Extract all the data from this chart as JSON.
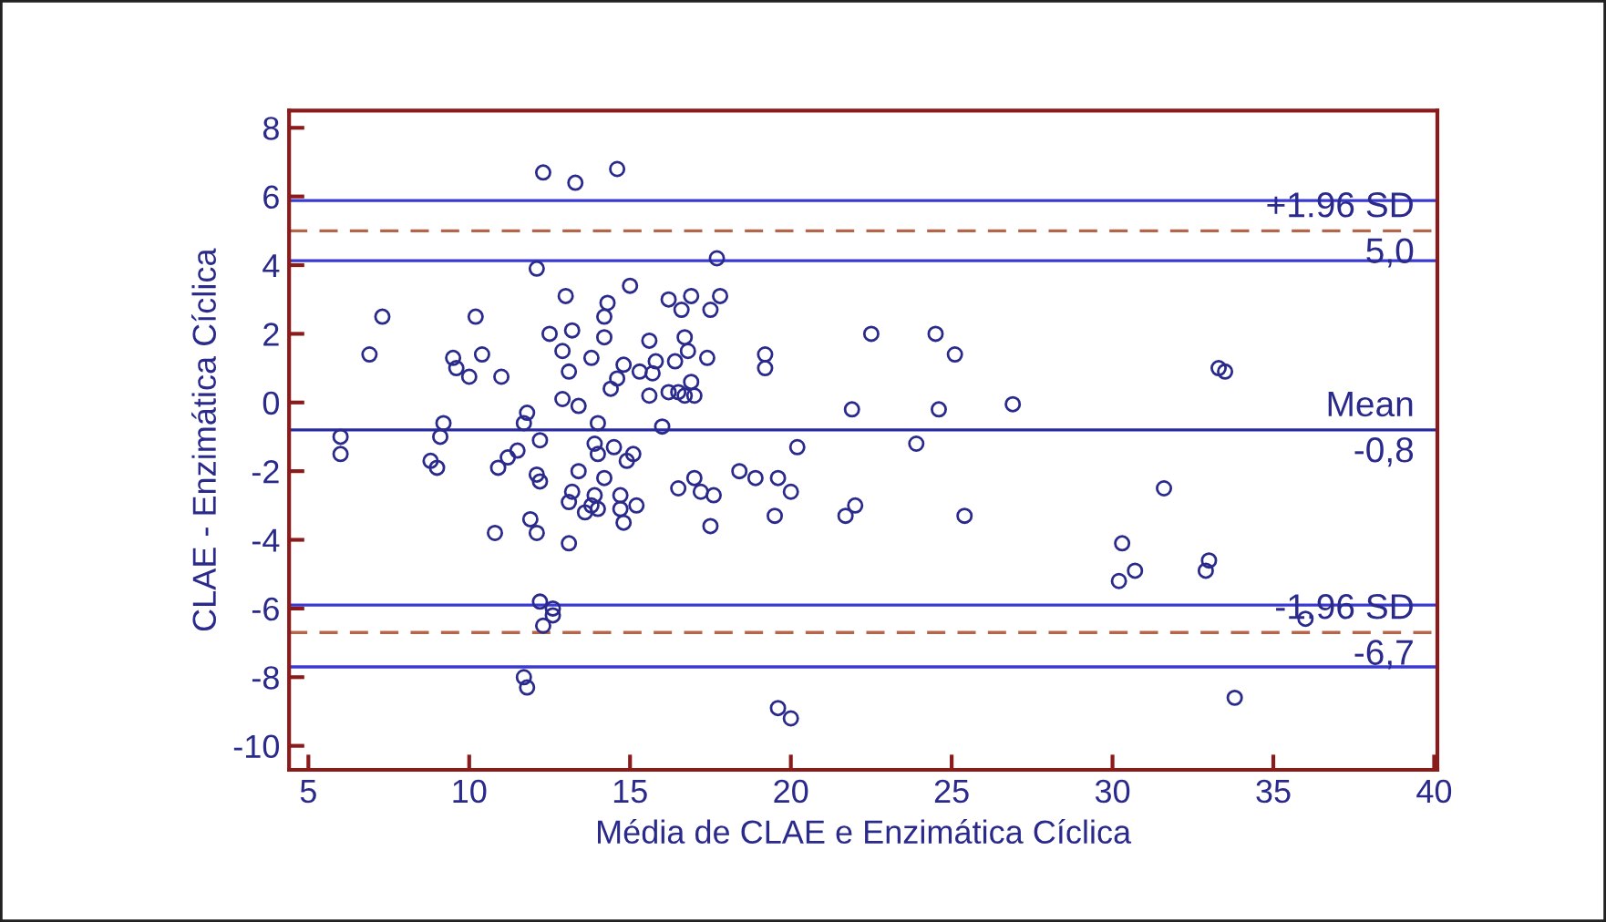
{
  "chart_data": {
    "type": "scatter",
    "xlabel": "Média de CLAE e Enzimática Cíclica",
    "ylabel": "CLAE - Enzimática Cíclica",
    "marker": "circle",
    "grid": false,
    "xlim": [
      4.4,
      40.1
    ],
    "xticks": [
      5,
      10,
      15,
      20,
      25,
      30,
      35,
      40
    ],
    "ylim": [
      -10.7,
      8.5
    ],
    "yticks": [
      -10,
      -8,
      -6,
      -4,
      -2,
      0,
      2,
      4,
      6,
      8
    ],
    "series": [
      {
        "color": "#2a2a8c",
        "x": [
          6.0,
          6.0,
          6.9,
          7.3,
          10.2,
          9.5,
          9.6,
          10.0,
          10.4,
          11.0,
          12.1,
          13.0,
          12.5,
          13.2,
          12.9,
          13.1,
          12.9,
          13.4,
          11.8,
          11.7,
          9.2,
          9.1,
          12.2,
          12.3,
          13.3,
          8.8,
          9.0,
          10.9,
          11.2,
          11.5,
          12.1,
          12.2,
          13.4,
          13.2,
          13.1,
          13.8,
          13.6,
          10.8,
          11.9,
          12.1,
          13.1,
          12.2,
          12.6,
          12.6,
          12.3,
          11.7,
          11.8,
          14.6,
          17.7,
          15.0,
          14.3,
          14.2,
          16.2,
          16.6,
          16.9,
          17.5,
          17.8,
          14.2,
          15.6,
          16.7,
          16.8,
          17.4,
          19.2,
          19.2,
          13.8,
          14.8,
          15.3,
          15.7,
          15.8,
          16.4,
          14.4,
          14.6,
          15.6,
          16.2,
          16.5,
          16.7,
          16.9,
          17.0,
          14.0,
          16.0,
          22.5,
          21.9,
          20.2,
          13.9,
          14.5,
          14.0,
          15.1,
          14.9,
          14.2,
          13.9,
          14.0,
          14.7,
          14.7,
          15.2,
          14.8,
          16.5,
          17.0,
          17.2,
          17.6,
          17.5,
          18.4,
          18.9,
          19.6,
          20.0,
          19.5,
          22.0,
          21.7,
          19.6,
          20.0,
          24.5,
          25.1,
          24.6,
          26.9,
          23.9,
          33.3,
          33.5,
          31.6,
          25.4,
          30.3,
          30.7,
          30.2,
          33.0,
          32.9,
          36.0,
          33.8
        ],
        "values": [
          -1.0,
          -1.5,
          1.4,
          2.5,
          2.5,
          1.3,
          1.0,
          0.75,
          1.4,
          0.75,
          3.9,
          3.1,
          2.0,
          2.1,
          1.5,
          0.9,
          0.1,
          -0.1,
          -0.3,
          -0.6,
          -0.6,
          -1.0,
          -1.1,
          6.7,
          6.4,
          -1.7,
          -1.9,
          -1.9,
          -1.6,
          -1.4,
          -2.1,
          -2.3,
          -2.0,
          -2.6,
          -2.9,
          -3.0,
          -3.2,
          -3.8,
          -3.4,
          -3.8,
          -4.1,
          -5.8,
          -6.0,
          -6.2,
          -6.5,
          -8.0,
          -8.3,
          6.8,
          4.2,
          3.4,
          2.9,
          2.5,
          3.0,
          2.7,
          3.1,
          2.7,
          3.1,
          1.9,
          1.8,
          1.9,
          1.5,
          1.3,
          1.4,
          1.0,
          1.3,
          1.1,
          0.9,
          0.85,
          1.2,
          1.2,
          0.4,
          0.7,
          0.2,
          0.3,
          0.3,
          0.2,
          0.6,
          0.2,
          -0.6,
          -0.7,
          2.0,
          -0.2,
          -1.3,
          -1.2,
          -1.3,
          -1.5,
          -1.5,
          -1.7,
          -2.2,
          -2.7,
          -3.1,
          -2.7,
          -3.1,
          -3.0,
          -3.5,
          -2.5,
          -2.2,
          -2.6,
          -2.7,
          -3.6,
          -2.0,
          -2.2,
          -2.2,
          -2.6,
          -3.3,
          -3.0,
          -3.3,
          -8.9,
          -9.2,
          2.0,
          1.4,
          -0.2,
          -0.05,
          -1.2,
          1.0,
          0.9,
          -2.5,
          -3.3,
          -4.1,
          -4.9,
          -5.2,
          -4.6,
          -4.9,
          -6.3,
          -8.6
        ]
      }
    ],
    "ref_lines": [
      {
        "axis": "y",
        "value": 5.88,
        "color": "#3a3ad0",
        "line_style": "solid"
      },
      {
        "axis": "y",
        "value": 5.0,
        "label": "+1.96 SD\n5,0",
        "color": "#b5654a",
        "line_style": "dashed"
      },
      {
        "axis": "y",
        "value": 4.13,
        "color": "#3a3ad0",
        "line_style": "solid"
      },
      {
        "axis": "y",
        "value": -0.8,
        "label": "Mean\n-0,8",
        "color": "#2a2aa0",
        "line_style": "solid"
      },
      {
        "axis": "y",
        "value": -5.9,
        "color": "#3a3ad0",
        "line_style": "solid"
      },
      {
        "axis": "y",
        "value": -6.7,
        "label": "-1.96 SD\n-6,7",
        "color": "#b5654a",
        "line_style": "dashed"
      },
      {
        "axis": "y",
        "value": -7.7,
        "color": "#3a3ad0",
        "line_style": "solid"
      }
    ]
  }
}
